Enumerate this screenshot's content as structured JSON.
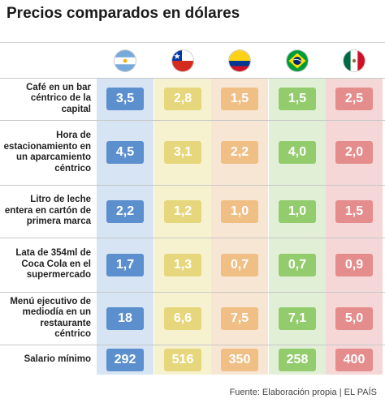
{
  "title": "Precios comparados en dólares",
  "source": "Fuente: Elaboración propia | EL PAÍS",
  "colors": {
    "argentina_bg": "#d6e4f3",
    "argentina_cell": "#5b8fce",
    "chile_bg": "#f6f2d0",
    "chile_cell": "#e6d77c",
    "colombia_bg": "#f7e6d3",
    "colombia_cell": "#f0bf85",
    "brasil_bg": "#e0efd6",
    "brasil_cell": "#93cc6d",
    "mexico_bg": "#f5d7d7",
    "mexico_cell": "#e58c8c"
  },
  "chart_data": {
    "type": "table",
    "title": "Precios comparados en dólares",
    "columns": [
      {
        "country": "argentina",
        "flag": "argentina-flag"
      },
      {
        "country": "chile",
        "flag": "chile-flag"
      },
      {
        "country": "colombia",
        "flag": "colombia-flag"
      },
      {
        "country": "brasil",
        "flag": "brazil-flag"
      },
      {
        "country": "mexico",
        "flag": "mexico-flag"
      }
    ],
    "rows": [
      {
        "label": "Café en un bar céntrico de la capital",
        "values": [
          "3,5",
          "2,8",
          "1,5",
          "1,5",
          "2,5"
        ]
      },
      {
        "label": "Hora de estacionamiento en un aparcamiento céntrico",
        "values": [
          "4,5",
          "3,1",
          "2,2",
          "4,0",
          "2,0"
        ]
      },
      {
        "label": "Litro de leche entera en cartón de primera marca",
        "values": [
          "2,2",
          "1,2",
          "1,0",
          "1,0",
          "1,5"
        ]
      },
      {
        "label": "Lata de 354ml de Coca Cola en el supermercado",
        "values": [
          "1,7",
          "1,3",
          "0,7",
          "0,7",
          "0,9"
        ]
      },
      {
        "label": "Menú ejecutivo de mediodía en un restaurante céntrico",
        "values": [
          "18",
          "6,6",
          "7,5",
          "7,1",
          "5,0"
        ]
      },
      {
        "label": "Salario mínimo",
        "values": [
          "292",
          "516",
          "350",
          "258",
          "400"
        ]
      }
    ]
  }
}
